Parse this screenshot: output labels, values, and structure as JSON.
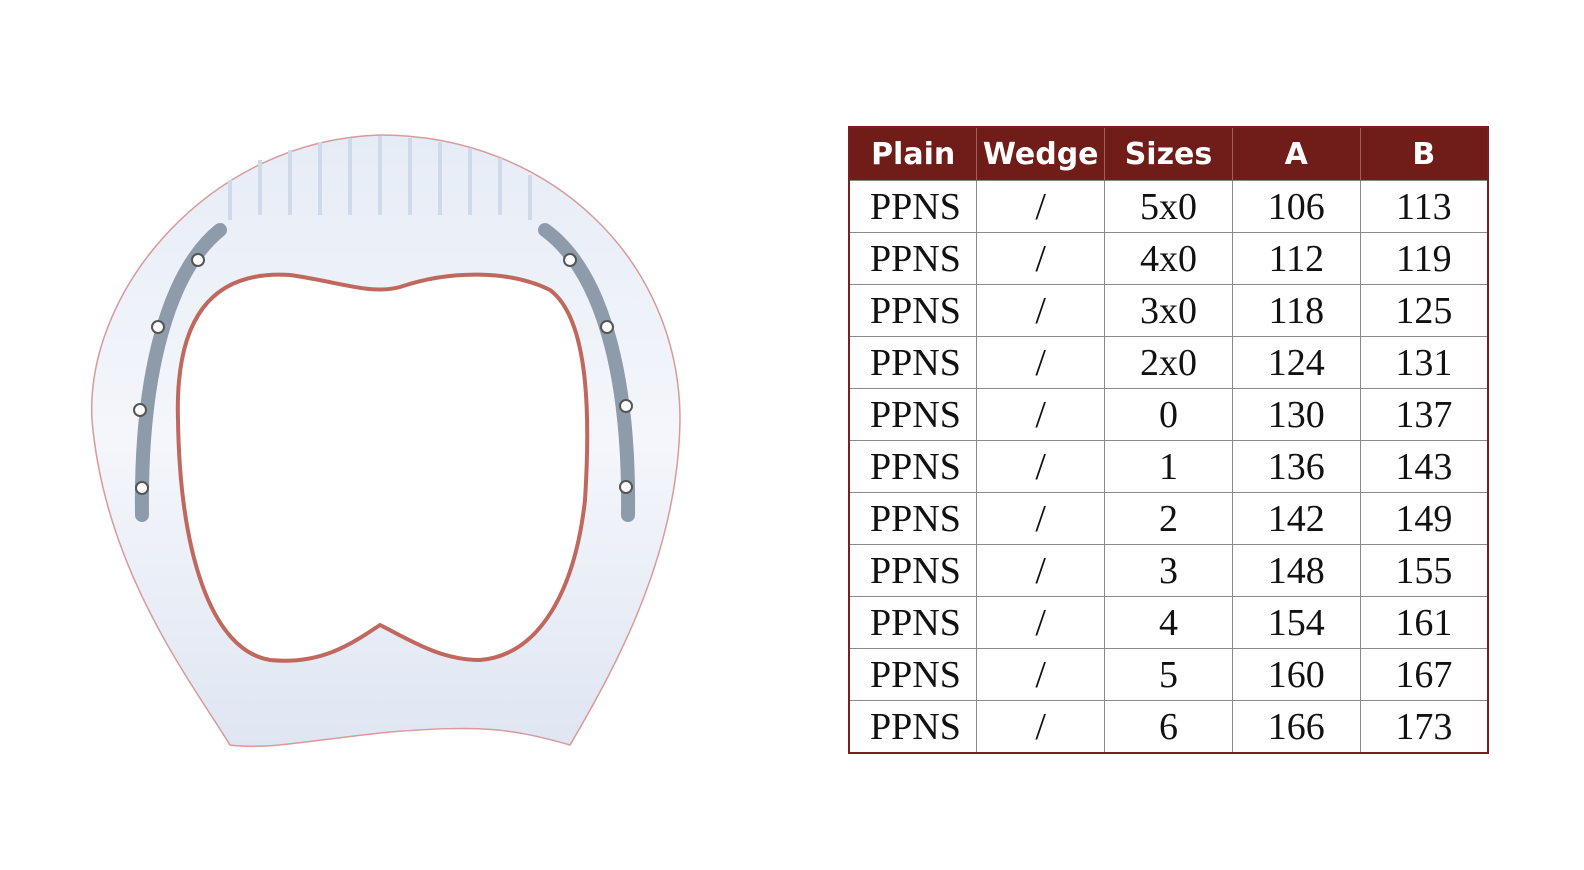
{
  "product_image": {
    "description_icon": "horseshoe-icon"
  },
  "size_table": {
    "headers": [
      "Plain",
      "Wedge",
      "Sizes",
      "A",
      "B"
    ],
    "header_color": "#701c19",
    "rows": [
      [
        "PPNS",
        "/",
        "5x0",
        "106",
        "113"
      ],
      [
        "PPNS",
        "/",
        "4x0",
        "112",
        "119"
      ],
      [
        "PPNS",
        "/",
        "3x0",
        "118",
        "125"
      ],
      [
        "PPNS",
        "/",
        "2x0",
        "124",
        "131"
      ],
      [
        "PPNS",
        "/",
        "0",
        "130",
        "137"
      ],
      [
        "PPNS",
        "/",
        "1",
        "136",
        "143"
      ],
      [
        "PPNS",
        "/",
        "2",
        "142",
        "149"
      ],
      [
        "PPNS",
        "/",
        "3",
        "148",
        "155"
      ],
      [
        "PPNS",
        "/",
        "4",
        "154",
        "161"
      ],
      [
        "PPNS",
        "/",
        "5",
        "160",
        "167"
      ],
      [
        "PPNS",
        "/",
        "6",
        "166",
        "173"
      ]
    ]
  }
}
